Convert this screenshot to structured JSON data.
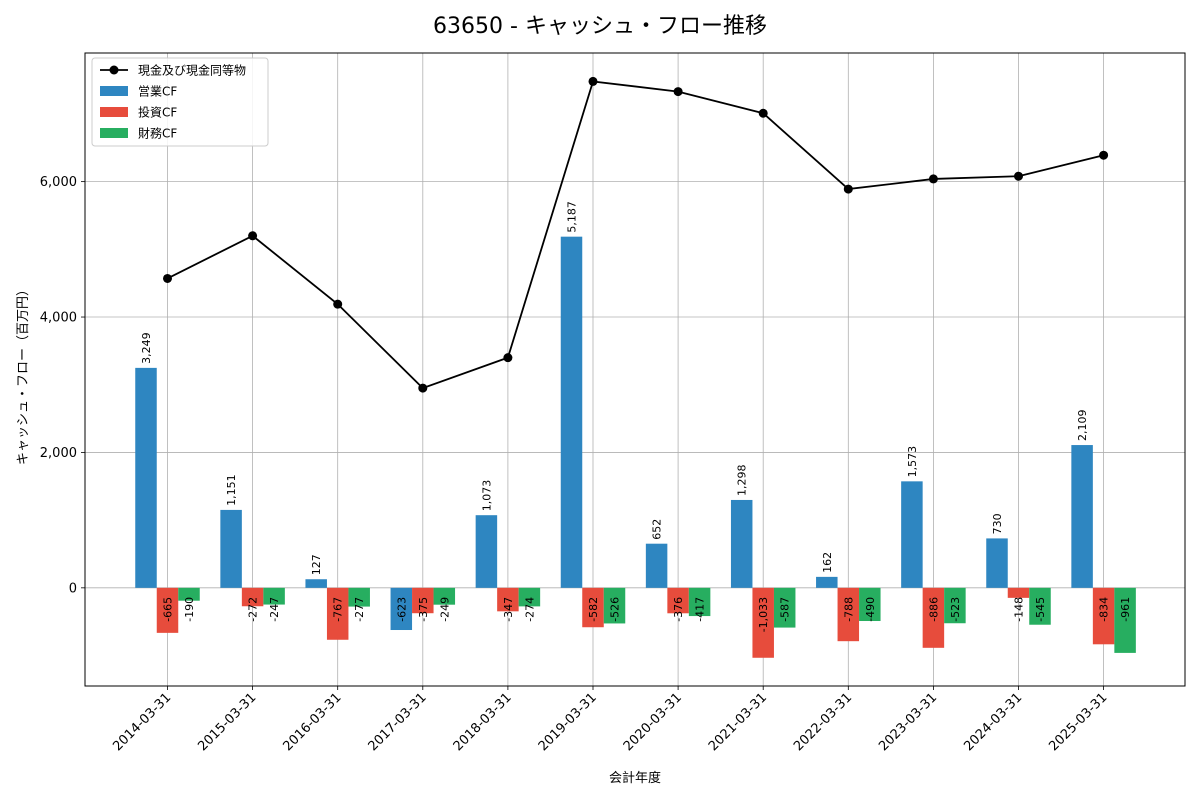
{
  "chart_data": {
    "type": "bar",
    "title": "63650 - キャッシュ・フロー推移",
    "xlabel": "会計年度",
    "ylabel": "キャッシュ・フロー（百万円）",
    "ylim": [
      -1450,
      7900
    ],
    "yticks": [
      0,
      2000,
      4000,
      6000
    ],
    "ytick_labels": [
      "0",
      "2,000",
      "4,000",
      "6,000"
    ],
    "grid": true,
    "legend_position": "top-left",
    "categories": [
      "2014-03-31",
      "2015-03-31",
      "2016-03-31",
      "2017-03-31",
      "2018-03-31",
      "2019-03-31",
      "2020-03-31",
      "2021-03-31",
      "2022-03-31",
      "2023-03-31",
      "2024-03-31",
      "2025-03-31"
    ],
    "series": [
      {
        "name": "営業CF",
        "type": "bar",
        "color": "#2e86c1",
        "values": [
          3249,
          1151,
          127,
          -623,
          1073,
          5187,
          652,
          1298,
          162,
          1573,
          730,
          2109
        ],
        "labels": [
          "3,249",
          "1,151",
          "127",
          "-623",
          "1,073",
          "5,187",
          "652",
          "1,298",
          "162",
          "1,573",
          "730",
          "2,109"
        ]
      },
      {
        "name": "投資CF",
        "type": "bar",
        "color": "#e74c3c",
        "values": [
          -665,
          -272,
          -767,
          -375,
          -347,
          -582,
          -376,
          -1033,
          -788,
          -886,
          -148,
          -834
        ],
        "labels": [
          "-665",
          "-272",
          "-767",
          "-375",
          "-347",
          "-582",
          "-376",
          "-1,033",
          "-788",
          "-886",
          "-148",
          "-834"
        ]
      },
      {
        "name": "財務CF",
        "type": "bar",
        "color": "#27ae60",
        "values": [
          -190,
          -247,
          -277,
          -249,
          -274,
          -526,
          -417,
          -587,
          -490,
          -523,
          -545,
          -961
        ],
        "labels": [
          "-190",
          "-247",
          "-277",
          "-249",
          "-274",
          "-526",
          "-417",
          "-587",
          "-490",
          "-523",
          "-545",
          "-961"
        ]
      },
      {
        "name": "現金及び現金同等物",
        "type": "line",
        "color": "#000000",
        "values": [
          4570,
          5200,
          4190,
          2950,
          3400,
          7480,
          7330,
          7010,
          5890,
          6040,
          6080,
          6390
        ]
      }
    ]
  }
}
